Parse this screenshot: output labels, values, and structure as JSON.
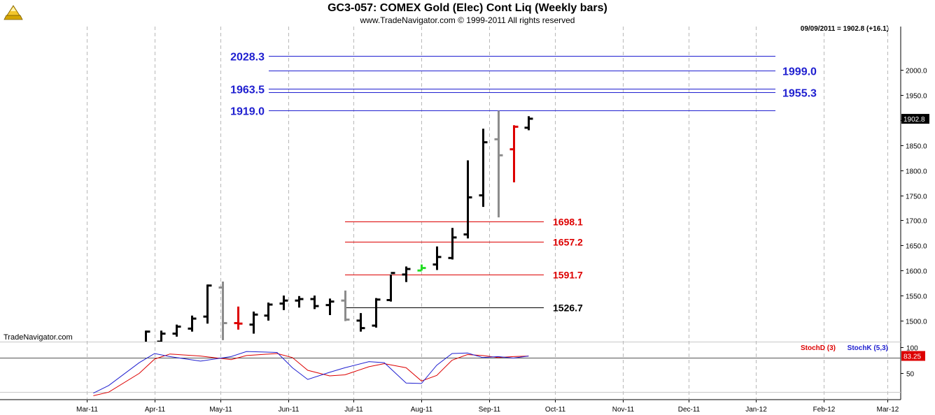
{
  "header": {
    "title": "GC3-057:  COMEX Gold (Elec) Cont Liq  (Weekly bars)",
    "copyright": "www.TradeNavigator.com © 1999-2011 All rights reserved",
    "quote": "09/09/2011 = 1902.8 (+16.1)",
    "brand": "TradeNavigator.com"
  },
  "colors": {
    "blue": "#1f1fd0",
    "red": "#dd0000",
    "black": "#000000",
    "gray": "#8c8c8c",
    "green": "#22dd22",
    "grid": "#b8b8b8"
  },
  "chart_data": [
    {
      "type": "ohlc",
      "title": "GC3-057:  COMEX Gold (Elec) Cont Liq  (Weekly bars)",
      "x_tick_labels": [
        "Mar-11",
        "Apr-11",
        "May-11",
        "Jun-11",
        "Jul-11",
        "Aug-11",
        "Sep-11",
        "Oct-11",
        "Nov-11",
        "Dec-11",
        "Jan-12",
        "Feb-12",
        "Mar-12"
      ],
      "x_tick_dates": [
        "2011-03-01",
        "2011-04-01",
        "2011-05-01",
        "2011-06-01",
        "2011-07-01",
        "2011-08-01",
        "2011-09-01",
        "2011-10-01",
        "2011-11-01",
        "2011-12-01",
        "2012-01-01",
        "2012-02-01",
        "2012-03-01"
      ],
      "ylim": [
        1458,
        2087
      ],
      "y_ticks": [
        1500,
        1550,
        1600,
        1650,
        1700,
        1750,
        1800,
        1850,
        1900,
        1950,
        2000
      ],
      "y_tick_labels": [
        "1500.0",
        "1550.0",
        "1600.0",
        "1650.0",
        "1700.0",
        "1750.0",
        "1800.0",
        "1850.0",
        "1900.0",
        "1950.0",
        "2000.0"
      ],
      "last_price_label": "1902.8",
      "last_price": 1902.8,
      "grid": true,
      "bars": [
        {
          "date": "2011-03-28",
          "open": 1454,
          "high": 1480,
          "low": 1452,
          "close": 1478,
          "color": "black"
        },
        {
          "date": "2011-04-04",
          "open": 1458,
          "high": 1480,
          "low": 1450,
          "close": 1474,
          "color": "black"
        },
        {
          "date": "2011-04-11",
          "open": 1474,
          "high": 1492,
          "low": 1468,
          "close": 1488,
          "color": "black"
        },
        {
          "date": "2011-04-18",
          "open": 1484,
          "high": 1510,
          "low": 1478,
          "close": 1504,
          "color": "black"
        },
        {
          "date": "2011-04-25",
          "open": 1508,
          "high": 1572,
          "low": 1494,
          "close": 1570,
          "color": "black"
        },
        {
          "date": "2011-05-02",
          "open": 1566,
          "high": 1578,
          "low": 1461,
          "close": 1495,
          "color": "gray"
        },
        {
          "date": "2011-05-09",
          "open": 1495,
          "high": 1528,
          "low": 1482,
          "close": 1494,
          "color": "red"
        },
        {
          "date": "2011-05-16",
          "open": 1492,
          "high": 1518,
          "low": 1474,
          "close": 1512,
          "color": "black"
        },
        {
          "date": "2011-05-23",
          "open": 1510,
          "high": 1536,
          "low": 1500,
          "close": 1532,
          "color": "black"
        },
        {
          "date": "2011-05-30",
          "open": 1534,
          "high": 1550,
          "low": 1521,
          "close": 1540,
          "color": "black"
        },
        {
          "date": "2011-06-06",
          "open": 1540,
          "high": 1549,
          "low": 1526,
          "close": 1543,
          "color": "black"
        },
        {
          "date": "2011-06-13",
          "open": 1543,
          "high": 1550,
          "low": 1523,
          "close": 1529,
          "color": "black"
        },
        {
          "date": "2011-06-20",
          "open": 1531,
          "high": 1544,
          "low": 1511,
          "close": 1538,
          "color": "black"
        },
        {
          "date": "2011-06-27",
          "open": 1540,
          "high": 1560,
          "low": 1499,
          "close": 1502,
          "color": "gray"
        },
        {
          "date": "2011-07-04",
          "open": 1500,
          "high": 1515,
          "low": 1478,
          "close": 1485,
          "color": "black"
        },
        {
          "date": "2011-07-11",
          "open": 1490,
          "high": 1545,
          "low": 1486,
          "close": 1542,
          "color": "black"
        },
        {
          "date": "2011-07-18",
          "open": 1541,
          "high": 1592,
          "low": 1538,
          "close": 1595,
          "color": "black"
        },
        {
          "date": "2011-07-25",
          "open": 1592,
          "high": 1608,
          "low": 1577,
          "close": 1603,
          "color": "black"
        },
        {
          "date": "2011-08-01",
          "open": 1600,
          "high": 1612,
          "low": 1600,
          "close": 1605,
          "color": "green"
        },
        {
          "date": "2011-08-08",
          "open": 1612,
          "high": 1648,
          "low": 1601,
          "close": 1627,
          "color": "black"
        },
        {
          "date": "2011-08-15",
          "open": 1625,
          "high": 1685,
          "low": 1622,
          "close": 1666,
          "color": "black"
        },
        {
          "date": "2011-08-22",
          "open": 1672,
          "high": 1820,
          "low": 1664,
          "close": 1746,
          "color": "black"
        },
        {
          "date": "2011-08-29",
          "open": 1750,
          "high": 1883,
          "low": 1727,
          "close": 1856,
          "color": "black"
        },
        {
          "date": "2011-09-05",
          "open": 1862,
          "high": 1919,
          "low": 1706,
          "close": 1830,
          "color": "gray"
        },
        {
          "date": "2011-09-12",
          "open": 1842,
          "high": 1890,
          "low": 1776,
          "close": 1887,
          "color": "red"
        },
        {
          "date": "2011-09-19",
          "open": 1885,
          "high": 1908,
          "low": 1880,
          "close": 1903,
          "color": "black"
        }
      ],
      "levels": [
        {
          "value": 2028.3,
          "label": "2028.3",
          "color": "blue"
        },
        {
          "value": 1999.0,
          "label": "1999.0",
          "color": "blue"
        },
        {
          "value": 1963.5,
          "label": "1963.5",
          "color": "blue"
        },
        {
          "value": 1955.3,
          "label": "1955.3",
          "color": "blue"
        },
        {
          "value": 1919.0,
          "label": "1919.0",
          "color": "blue"
        },
        {
          "value": 1698.1,
          "label": "1698.1",
          "color": "red"
        },
        {
          "value": 1657.2,
          "label": "1657.2",
          "color": "red"
        },
        {
          "value": 1591.7,
          "label": "1591.7",
          "color": "red"
        },
        {
          "value": 1526.7,
          "label": "1526.7",
          "color": "black"
        }
      ]
    },
    {
      "type": "line",
      "ylim": [
        0,
        110
      ],
      "y_ticks": [
        50,
        100
      ],
      "y_tick_labels": [
        "50",
        "100"
      ],
      "reference_line": 80,
      "last_value_label": "83.25",
      "last_value": 83.25,
      "series": [
        {
          "name": "StochD (3)",
          "color": "red",
          "values": [
            {
              "date": "2011-03-04",
              "value": 5
            },
            {
              "date": "2011-03-11",
              "value": 12
            },
            {
              "date": "2011-03-25",
              "value": 49
            },
            {
              "date": "2011-04-01",
              "value": 77
            },
            {
              "date": "2011-04-08",
              "value": 87
            },
            {
              "date": "2011-04-22",
              "value": 83
            },
            {
              "date": "2011-05-06",
              "value": 76
            },
            {
              "date": "2011-05-13",
              "value": 84
            },
            {
              "date": "2011-05-27",
              "value": 88
            },
            {
              "date": "2011-06-03",
              "value": 80
            },
            {
              "date": "2011-06-10",
              "value": 55
            },
            {
              "date": "2011-06-20",
              "value": 44
            },
            {
              "date": "2011-06-27",
              "value": 46
            },
            {
              "date": "2011-07-08",
              "value": 62
            },
            {
              "date": "2011-07-15",
              "value": 68
            },
            {
              "date": "2011-07-25",
              "value": 60
            },
            {
              "date": "2011-08-01",
              "value": 34
            },
            {
              "date": "2011-08-08",
              "value": 45
            },
            {
              "date": "2011-08-15",
              "value": 75
            },
            {
              "date": "2011-08-22",
              "value": 86
            },
            {
              "date": "2011-08-29",
              "value": 84
            },
            {
              "date": "2011-09-05",
              "value": 80
            },
            {
              "date": "2011-09-12",
              "value": 82
            },
            {
              "date": "2011-09-19",
              "value": 83
            }
          ]
        },
        {
          "name": "StochK (5,3)",
          "color": "blue",
          "values": [
            {
              "date": "2011-03-04",
              "value": 10
            },
            {
              "date": "2011-03-11",
              "value": 25
            },
            {
              "date": "2011-03-25",
              "value": 70
            },
            {
              "date": "2011-04-01",
              "value": 88
            },
            {
              "date": "2011-04-08",
              "value": 82
            },
            {
              "date": "2011-04-22",
              "value": 73
            },
            {
              "date": "2011-05-06",
              "value": 82
            },
            {
              "date": "2011-05-13",
              "value": 92
            },
            {
              "date": "2011-05-27",
              "value": 90
            },
            {
              "date": "2011-06-03",
              "value": 60
            },
            {
              "date": "2011-06-10",
              "value": 37
            },
            {
              "date": "2011-06-20",
              "value": 51
            },
            {
              "date": "2011-06-27",
              "value": 60
            },
            {
              "date": "2011-07-08",
              "value": 72
            },
            {
              "date": "2011-07-15",
              "value": 70
            },
            {
              "date": "2011-07-25",
              "value": 30
            },
            {
              "date": "2011-08-01",
              "value": 29
            },
            {
              "date": "2011-08-08",
              "value": 65
            },
            {
              "date": "2011-08-15",
              "value": 88
            },
            {
              "date": "2011-08-22",
              "value": 89
            },
            {
              "date": "2011-08-29",
              "value": 80
            },
            {
              "date": "2011-09-05",
              "value": 82
            },
            {
              "date": "2011-09-12",
              "value": 79
            },
            {
              "date": "2011-09-19",
              "value": 83
            }
          ]
        }
      ]
    }
  ]
}
